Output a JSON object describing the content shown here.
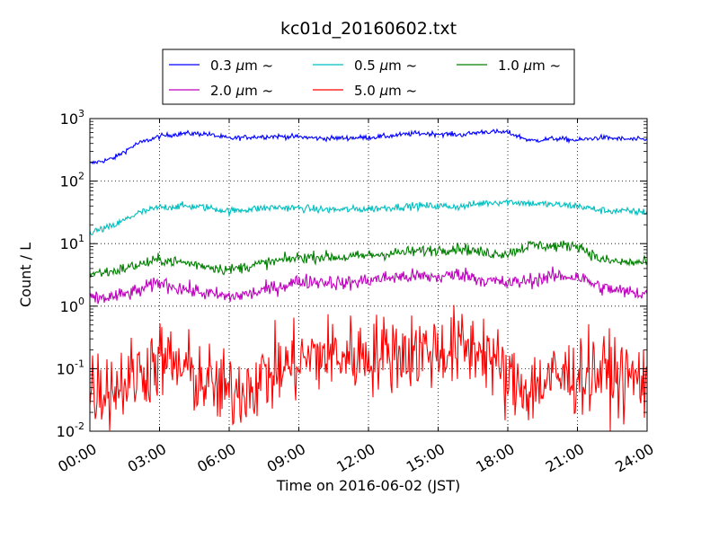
{
  "chart_data": {
    "type": "line",
    "title": "kc01d_20160602.txt",
    "xlabel": "Time on 2016-06-02 (JST)",
    "ylabel": "Count / L",
    "y_scale": "log",
    "ylim": [
      0.01,
      1000
    ],
    "y_ticks": [
      {
        "value": 0.01,
        "base": "10",
        "exp": "-2"
      },
      {
        "value": 0.1,
        "base": "10",
        "exp": "-1"
      },
      {
        "value": 1,
        "base": "10",
        "exp": "0"
      },
      {
        "value": 10,
        "base": "10",
        "exp": "1"
      },
      {
        "value": 100,
        "base": "10",
        "exp": "2"
      },
      {
        "value": 1000,
        "base": "10",
        "exp": "3"
      }
    ],
    "xlim": [
      "00:00",
      "24:00"
    ],
    "x_ticks": [
      "00:00",
      "03:00",
      "06:00",
      "09:00",
      "12:00",
      "15:00",
      "18:00",
      "21:00",
      "24:00"
    ],
    "grid": true,
    "legend_position": "top-center (above plot)",
    "legend_columns": 3,
    "series": [
      {
        "label": "0.3",
        "unit": "μm",
        "suffix": "~",
        "color": "#0000ff",
        "noise": 0.02,
        "x": [
          "00:00",
          "01:00",
          "02:00",
          "03:00",
          "04:00",
          "05:00",
          "06:00",
          "07:00",
          "08:00",
          "09:00",
          "10:00",
          "11:00",
          "12:00",
          "13:00",
          "14:00",
          "15:00",
          "16:00",
          "17:00",
          "18:00",
          "19:00",
          "20:00",
          "21:00",
          "22:00",
          "23:00",
          "24:00"
        ],
        "y": [
          190,
          230,
          390,
          520,
          580,
          570,
          480,
          510,
          520,
          510,
          480,
          490,
          500,
          530,
          580,
          570,
          550,
          620,
          600,
          440,
          480,
          450,
          500,
          470,
          460
        ]
      },
      {
        "label": "0.5",
        "unit": "μm",
        "suffix": "~",
        "color": "#00bfbf",
        "noise": 0.03,
        "x": [
          "00:00",
          "01:00",
          "02:00",
          "03:00",
          "04:00",
          "05:00",
          "06:00",
          "07:00",
          "08:00",
          "09:00",
          "10:00",
          "11:00",
          "12:00",
          "13:00",
          "14:00",
          "15:00",
          "16:00",
          "17:00",
          "18:00",
          "19:00",
          "20:00",
          "21:00",
          "22:00",
          "23:00",
          "24:00"
        ],
        "y": [
          15,
          19,
          30,
          38,
          40,
          38,
          33,
          36,
          38,
          37,
          35,
          35,
          36,
          38,
          40,
          40,
          39,
          45,
          47,
          44,
          42,
          40,
          34,
          33,
          32
        ]
      },
      {
        "label": "1.0",
        "unit": "μm",
        "suffix": "~",
        "color": "#008000",
        "noise": 0.045,
        "x": [
          "00:00",
          "01:00",
          "02:00",
          "03:00",
          "04:00",
          "05:00",
          "06:00",
          "07:00",
          "08:00",
          "09:00",
          "10:00",
          "11:00",
          "12:00",
          "13:00",
          "14:00",
          "15:00",
          "16:00",
          "17:00",
          "18:00",
          "19:00",
          "20:00",
          "21:00",
          "22:00",
          "23:00",
          "24:00"
        ],
        "y": [
          3.3,
          3.6,
          4.5,
          5.5,
          5.0,
          4.4,
          3.8,
          4.5,
          5.2,
          6.0,
          6.2,
          6.0,
          6.5,
          7.0,
          7.5,
          8.0,
          8.5,
          7.0,
          7.0,
          9.5,
          9.0,
          9.5,
          5.5,
          5.0,
          5.0
        ]
      },
      {
        "label": "2.0",
        "unit": "μm",
        "suffix": "~",
        "color": "#bf00bf",
        "noise": 0.06,
        "x": [
          "00:00",
          "01:00",
          "02:00",
          "03:00",
          "04:00",
          "05:00",
          "06:00",
          "07:00",
          "08:00",
          "09:00",
          "10:00",
          "11:00",
          "12:00",
          "13:00",
          "14:00",
          "15:00",
          "16:00",
          "17:00",
          "18:00",
          "19:00",
          "20:00",
          "21:00",
          "22:00",
          "23:00",
          "24:00"
        ],
        "y": [
          1.3,
          1.4,
          1.7,
          2.4,
          1.9,
          1.6,
          1.4,
          1.6,
          2.0,
          2.5,
          2.5,
          2.3,
          2.6,
          2.9,
          3.0,
          2.9,
          3.3,
          2.6,
          2.3,
          2.6,
          3.0,
          3.0,
          2.0,
          1.7,
          1.6
        ]
      },
      {
        "label": "5.0",
        "unit": "μm",
        "suffix": "~",
        "color": "#ff0000",
        "noise": 0.32,
        "x": [
          "00:00",
          "01:00",
          "02:00",
          "03:00",
          "04:00",
          "05:00",
          "06:00",
          "07:00",
          "08:00",
          "09:00",
          "10:00",
          "11:00",
          "12:00",
          "13:00",
          "14:00",
          "15:00",
          "16:00",
          "17:00",
          "18:00",
          "19:00",
          "20:00",
          "21:00",
          "22:00",
          "23:00",
          "24:00"
        ],
        "y": [
          0.05,
          0.05,
          0.08,
          0.14,
          0.1,
          0.06,
          0.04,
          0.06,
          0.09,
          0.13,
          0.17,
          0.16,
          0.17,
          0.18,
          0.19,
          0.2,
          0.21,
          0.22,
          0.06,
          0.05,
          0.07,
          0.08,
          0.09,
          0.07,
          0.07
        ]
      }
    ]
  }
}
